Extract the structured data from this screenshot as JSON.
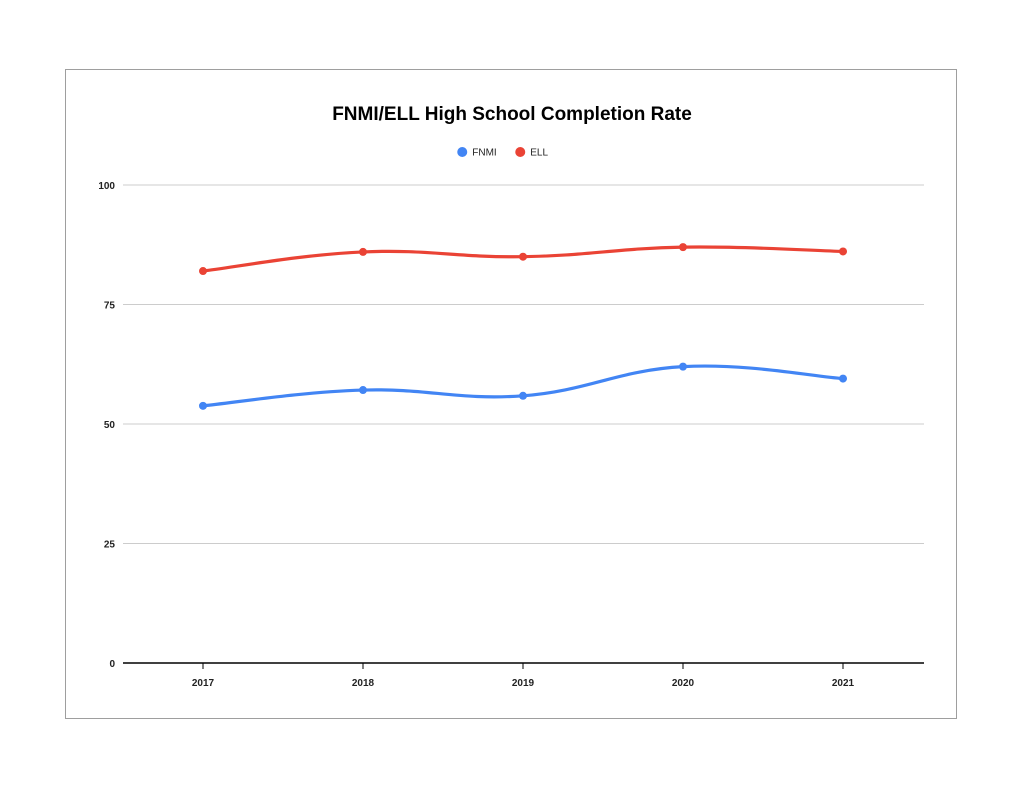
{
  "chart_data": {
    "type": "line",
    "title": "FNMI/ELL High School Completion Rate",
    "xlabel": "",
    "ylabel": "",
    "categories": [
      "2017",
      "2018",
      "2019",
      "2020",
      "2021"
    ],
    "ylim": [
      0,
      100
    ],
    "yticks": [
      0,
      25,
      50,
      75,
      100
    ],
    "grid": true,
    "legend_position": "top-center",
    "series": [
      {
        "name": "FNMI",
        "color": "#4285f4",
        "values": [
          53.8,
          57.1,
          55.9,
          62.0,
          59.5
        ]
      },
      {
        "name": "ELL",
        "color": "#ea4335",
        "values": [
          82.0,
          86.0,
          85.0,
          87.0,
          86.1
        ]
      }
    ]
  }
}
